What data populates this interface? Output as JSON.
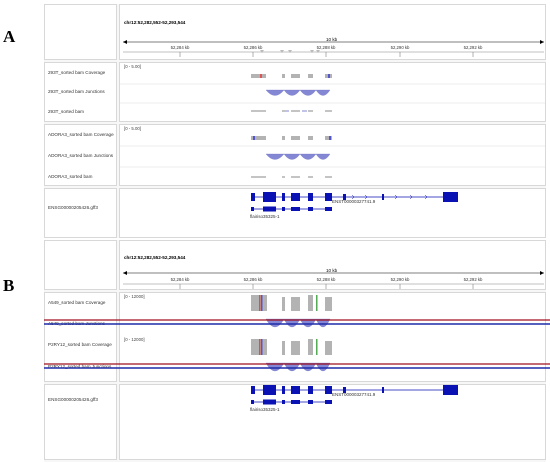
{
  "panels": {
    "a": "A",
    "b": "B"
  },
  "panel_a": {
    "locus": "chr12:52,282,552-52,293,544",
    "scale": "10 kb",
    "ticks": [
      "52,284 kb",
      "52,286 kb",
      "52,288 kb",
      "52,290 kb",
      "52,292 kb"
    ],
    "tracks": {
      "t293_cov": "293T_sorted bam Coverage",
      "t293_junc": "293T_sorted bam Junctions",
      "t293_bam": "293T_sorted bam",
      "adora_cov": "ADORA3_sorted bam Coverage",
      "adora_junc": "ADORA3_sorted bam Junctions",
      "adora_bam": "ADORA3_sorted bam",
      "gff": "ENSG00000205426.gff3"
    },
    "range_293": "[0 - 5.00]",
    "range_adora": "[0 - 5.00]",
    "transcript": "ENST00000327741.9",
    "isoform": "flairiso35325-1"
  },
  "panel_b": {
    "locus": "chr12:52,282,552-52,293,544",
    "scale": "10 kb",
    "ticks": [
      "52,284 kb",
      "52,286 kb",
      "52,288 kb",
      "52,290 kb",
      "52,292 kb"
    ],
    "tracks": {
      "a549_cov": "A549_sorted bam Coverage",
      "a549_junc": "A549_sorted bam Junctions",
      "p2ry_cov": "P2RY12_sorted bam Coverage",
      "p2ry_junc": "P2RY12_sorted bam Junctions",
      "gff": "ENSG00000205426.gff3"
    },
    "range_a549": "[0 - 12000]",
    "range_p2ry": "[0 - 12000]",
    "transcript": "ENST00000327741.9",
    "isoform": "flairiso35325-1"
  },
  "colors": {
    "exon": "#0a12b4",
    "junction": "#7d80cf",
    "coverage": "#b3b3b3",
    "highlight_red": "#a0101f",
    "highlight_blue": "#1e2ca8"
  }
}
